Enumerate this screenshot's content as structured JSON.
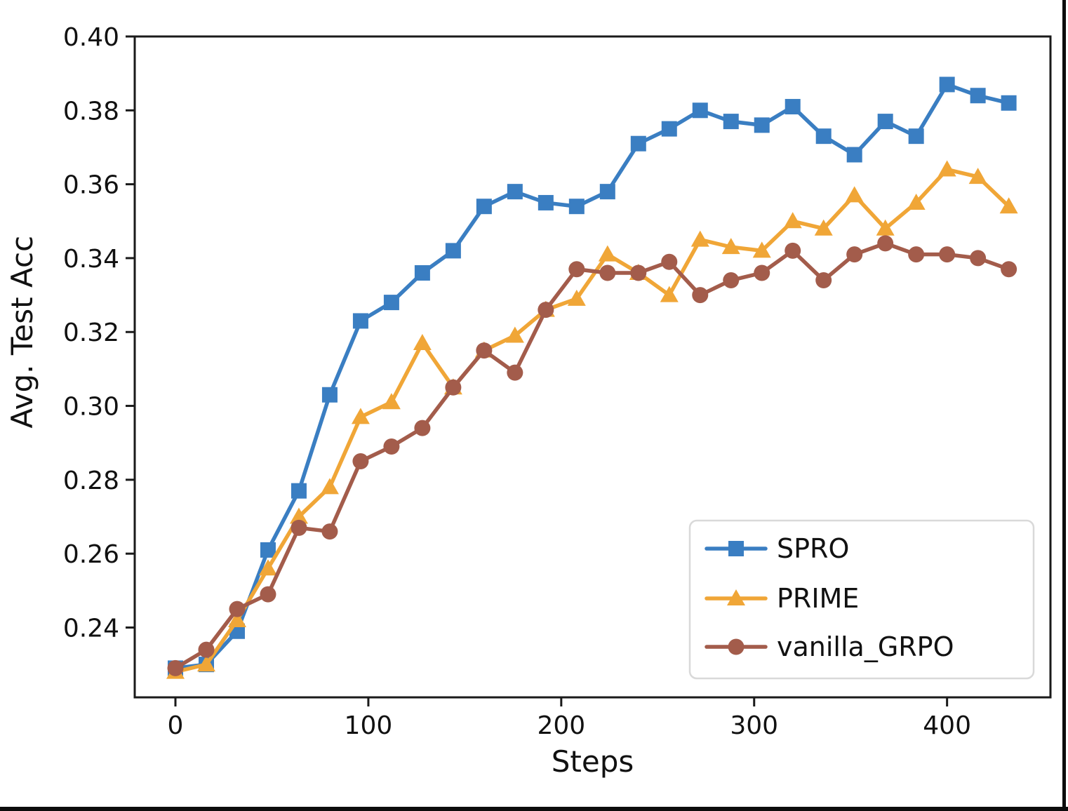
{
  "figure": {
    "background": "#ffffff",
    "frame_border_color": "#0c0c0c",
    "axis_color": "#1a1a1a"
  },
  "chart_data": {
    "type": "line",
    "title": "",
    "xlabel": "Steps",
    "ylabel": "Avg. Test Acc",
    "x": [
      0,
      16,
      32,
      48,
      64,
      80,
      96,
      112,
      128,
      144,
      160,
      176,
      192,
      208,
      224,
      240,
      256,
      272,
      288,
      304,
      320,
      336,
      352,
      368,
      384,
      400,
      416,
      432
    ],
    "series": [
      {
        "name": "SPRO",
        "color": "#3a7ec2",
        "marker": "square",
        "values": [
          0.229,
          0.23,
          0.239,
          0.261,
          0.277,
          0.303,
          0.323,
          0.328,
          0.336,
          0.342,
          0.354,
          0.358,
          0.355,
          0.354,
          0.358,
          0.371,
          0.375,
          0.38,
          0.377,
          0.376,
          0.381,
          0.373,
          0.368,
          0.377,
          0.373,
          0.387,
          0.384,
          0.382
        ]
      },
      {
        "name": "PRIME",
        "color": "#f0a637",
        "marker": "triangle",
        "values": [
          0.228,
          0.23,
          0.242,
          0.256,
          0.27,
          0.278,
          0.297,
          0.301,
          0.317,
          0.305,
          0.315,
          0.319,
          0.326,
          0.329,
          0.341,
          0.336,
          0.33,
          0.345,
          0.343,
          0.342,
          0.35,
          0.348,
          0.357,
          0.348,
          0.355,
          0.364,
          0.362,
          0.354
        ]
      },
      {
        "name": "vanilla_GRPO",
        "color": "#a35c4b",
        "marker": "circle",
        "values": [
          0.229,
          0.234,
          0.245,
          0.249,
          0.267,
          0.266,
          0.285,
          0.289,
          0.294,
          0.305,
          0.315,
          0.309,
          0.326,
          0.337,
          0.336,
          0.336,
          0.339,
          0.33,
          0.334,
          0.336,
          0.342,
          0.334,
          0.341,
          0.344,
          0.341,
          0.341,
          0.34,
          0.337
        ]
      }
    ],
    "xticks": {
      "values": [
        0,
        100,
        200,
        300,
        400
      ],
      "labels": [
        "0",
        "100",
        "200",
        "300",
        "400"
      ]
    },
    "yticks": {
      "values": [
        0.4,
        0.38,
        0.36,
        0.34,
        0.32,
        0.3,
        0.28,
        0.26,
        0.24
      ],
      "labels": [
        "0.40",
        "0.38",
        "0.36",
        "0.34",
        "0.32",
        "0.30",
        "0.28",
        "0.26",
        "0.24"
      ]
    },
    "xlim": [
      -21.1,
      453.6
    ],
    "ylim": [
      0.2211,
      0.4
    ],
    "grid": false,
    "legend": {
      "position": "lower right",
      "entries": [
        "SPRO",
        "PRIME",
        "vanilla_GRPO"
      ]
    }
  }
}
